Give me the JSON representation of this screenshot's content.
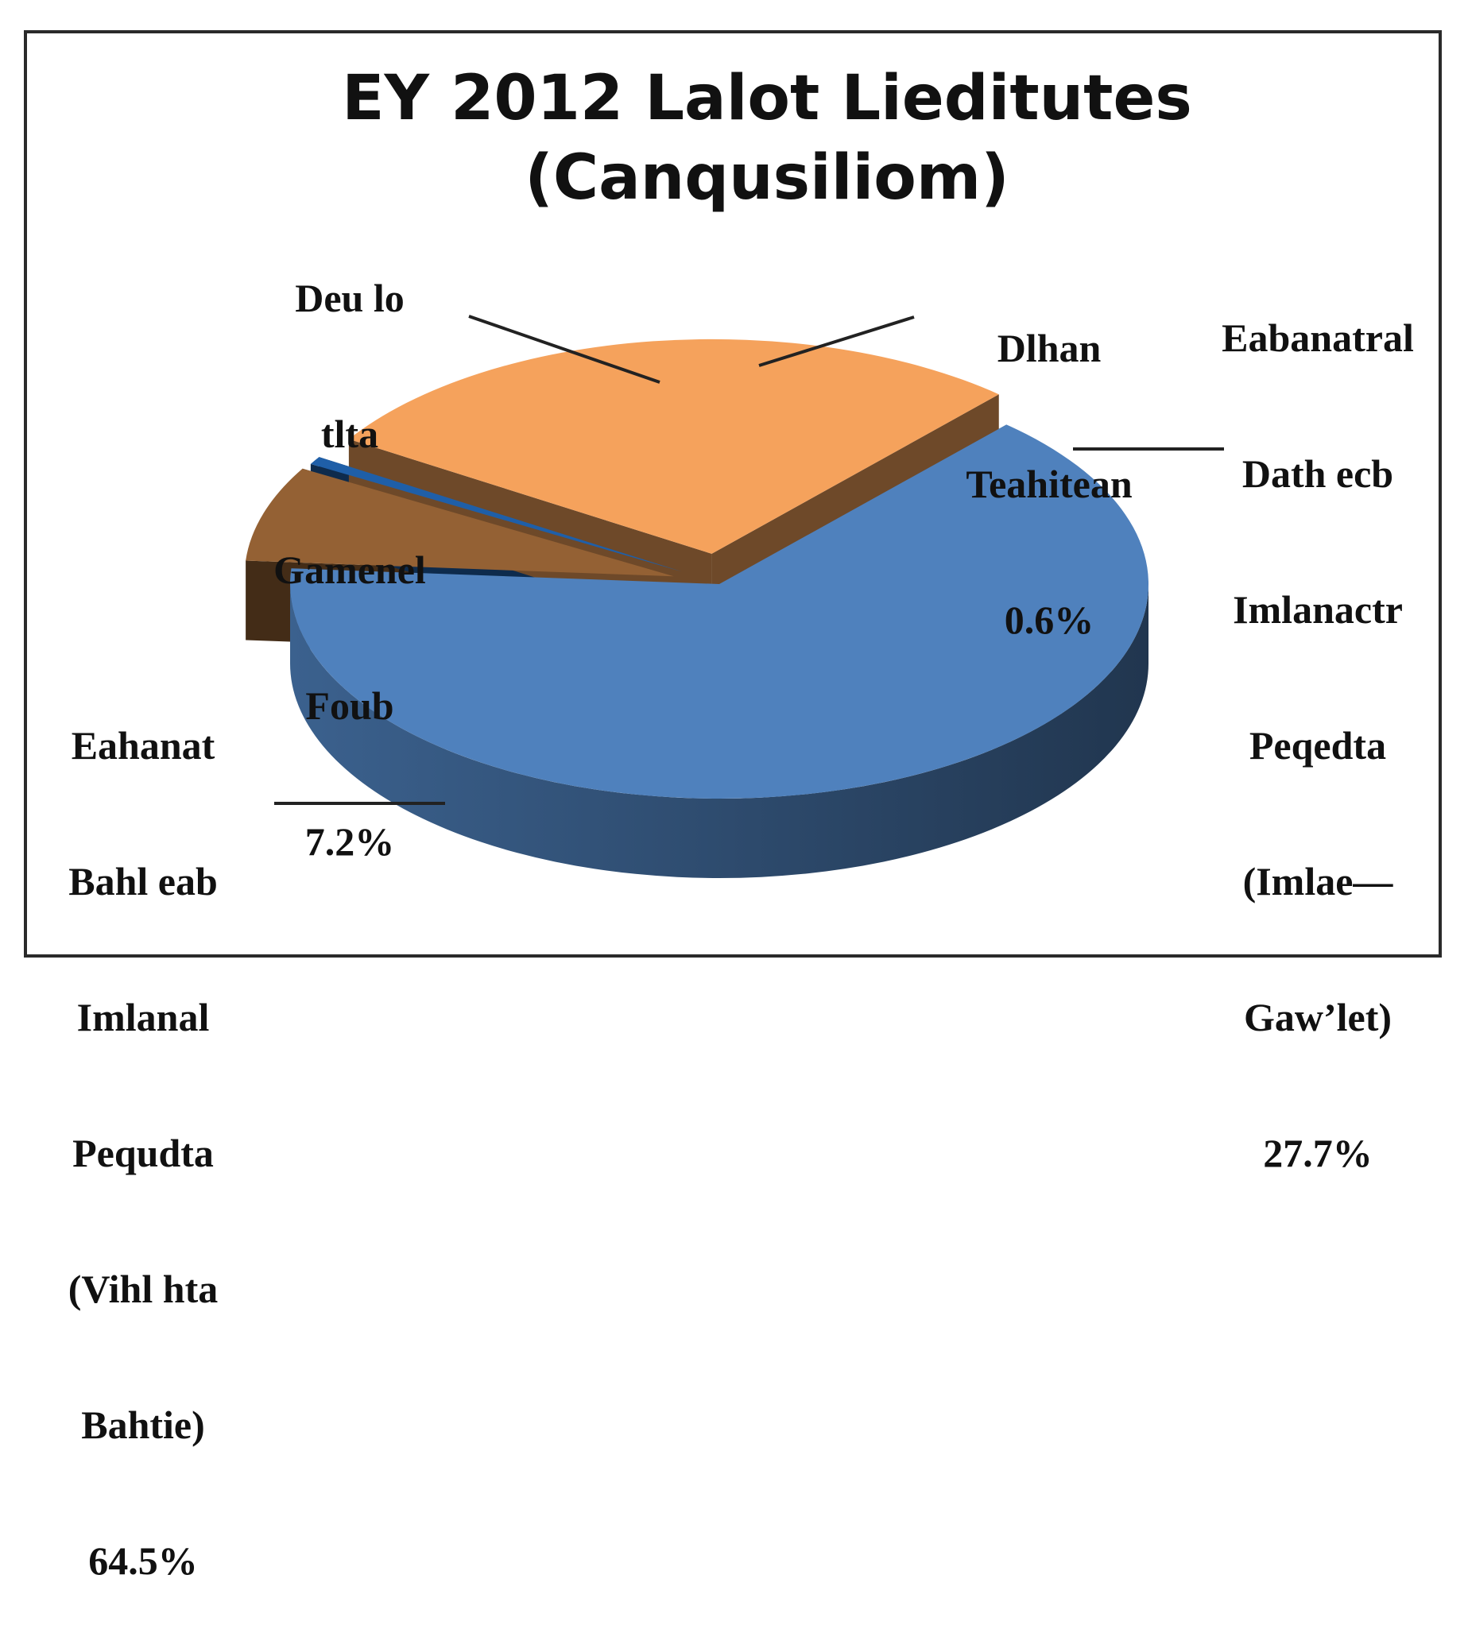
{
  "chart_data": {
    "type": "pie",
    "title_lines": [
      "EY 2012 Lalot Lieditutes",
      "(Canqusiliom)"
    ],
    "slices": [
      {
        "label_lines": [
          "Eahanat",
          "Bahl eab",
          "Imlanal",
          "Pequdta",
          "(Vihl hta",
          "Bahtie)"
        ],
        "percent_text": "64.5%",
        "value": 64.5,
        "color": "#4f81bd"
      },
      {
        "label_lines": [
          "Deu lo",
          "tlta",
          "Gamenel",
          "Foub"
        ],
        "percent_text": "7.2%",
        "value": 7.2,
        "color": "#946134"
      },
      {
        "label_lines": [
          "Dlhan",
          "Teahitean"
        ],
        "percent_text": "0.6%",
        "value": 0.6,
        "color": "#1f5fa8"
      },
      {
        "label_lines": [
          "Eabanatral",
          "Dath ecb",
          "Imlanactr",
          "Peqedta",
          "(Imlae—",
          "Gaw’let)"
        ],
        "percent_text": "27.7%",
        "value": 27.7,
        "color": "#f5a25c"
      }
    ],
    "legend": "none"
  }
}
